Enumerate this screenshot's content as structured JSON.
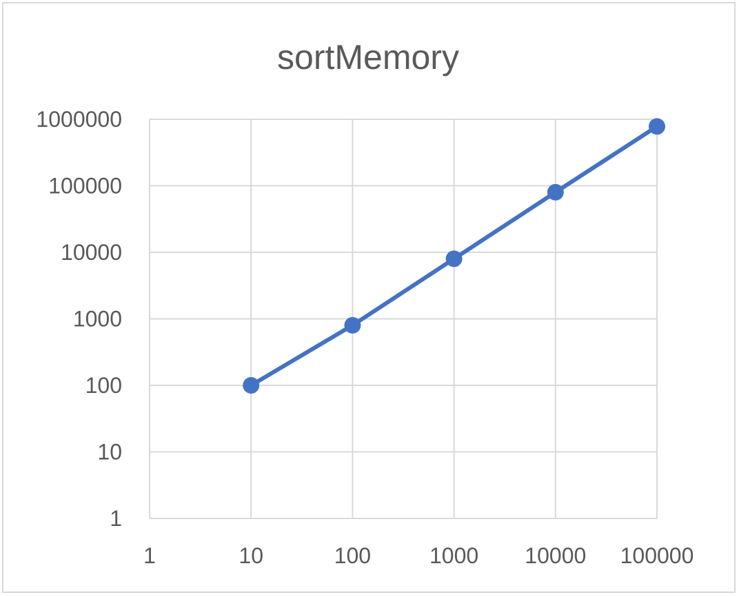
{
  "chart_data": {
    "type": "line",
    "title": "sortMemory",
    "xlabel": "",
    "ylabel": "",
    "x_scale": "log",
    "y_scale": "log",
    "xlim": [
      1,
      100000
    ],
    "ylim": [
      1,
      1000000
    ],
    "x_ticks": [
      "1",
      "10",
      "100",
      "1000",
      "10000",
      "100000"
    ],
    "y_ticks": [
      "1",
      "10",
      "100",
      "1000",
      "10000",
      "100000",
      "1000000"
    ],
    "grid": true,
    "legend": "none",
    "series": [
      {
        "x": [
          10,
          100,
          1000,
          10000,
          100000
        ],
        "y": [
          100,
          800,
          8000,
          80000,
          780000
        ],
        "color": "#4472c4"
      }
    ]
  }
}
